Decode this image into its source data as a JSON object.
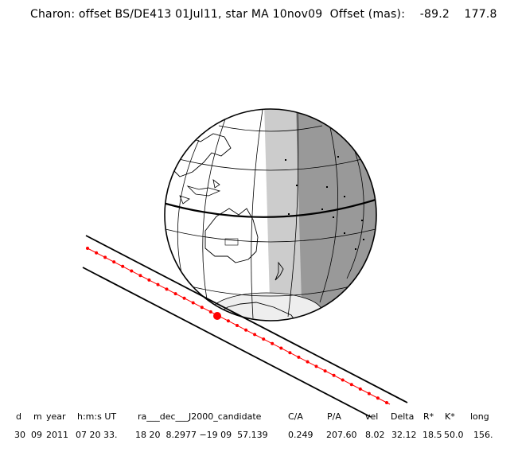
{
  "title": "Charon: offset BS/DE413 01Jul11, star MA 10nov09  Offset (mas):    -89.2    177.8",
  "table": {
    "headers": [
      "d",
      "m",
      "year",
      "h:m:s UT",
      "ra___dec___J2000_candidate",
      "C/A",
      "P/A",
      "vel",
      "Delta",
      "R*",
      "K*",
      "long"
    ],
    "values": [
      "30",
      "09",
      "2011",
      "07 20 33.",
      "18 20  8.2977 −19 09  57.139",
      "0.249",
      "207.60",
      "8.02",
      "32.12",
      "18.5",
      "50.0",
      "156."
    ]
  },
  "colors": {
    "track": "#ff0000",
    "night": "#999999",
    "twilight": "#cccccc",
    "lines": "#000000"
  }
}
